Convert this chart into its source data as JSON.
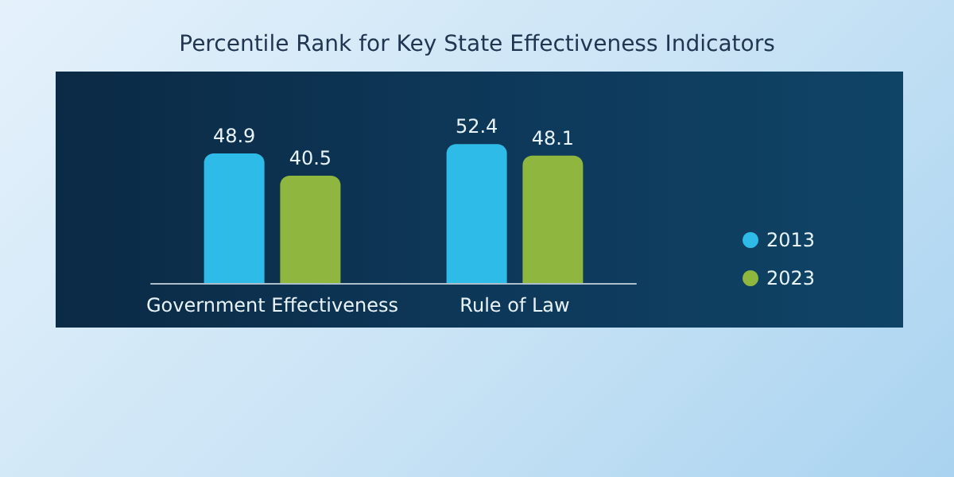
{
  "chart_data": {
    "type": "bar",
    "title": "Percentile Rank for Key State Effectiveness Indicators",
    "categories": [
      "Government Effectiveness",
      "Rule of Law"
    ],
    "series": [
      {
        "name": "2013",
        "color": "#2fbbe8",
        "values": [
          48.9,
          52.4
        ]
      },
      {
        "name": "2023",
        "color": "#8fb63e",
        "values": [
          40.5,
          48.1
        ]
      }
    ],
    "data_labels": true,
    "legend": "right"
  }
}
